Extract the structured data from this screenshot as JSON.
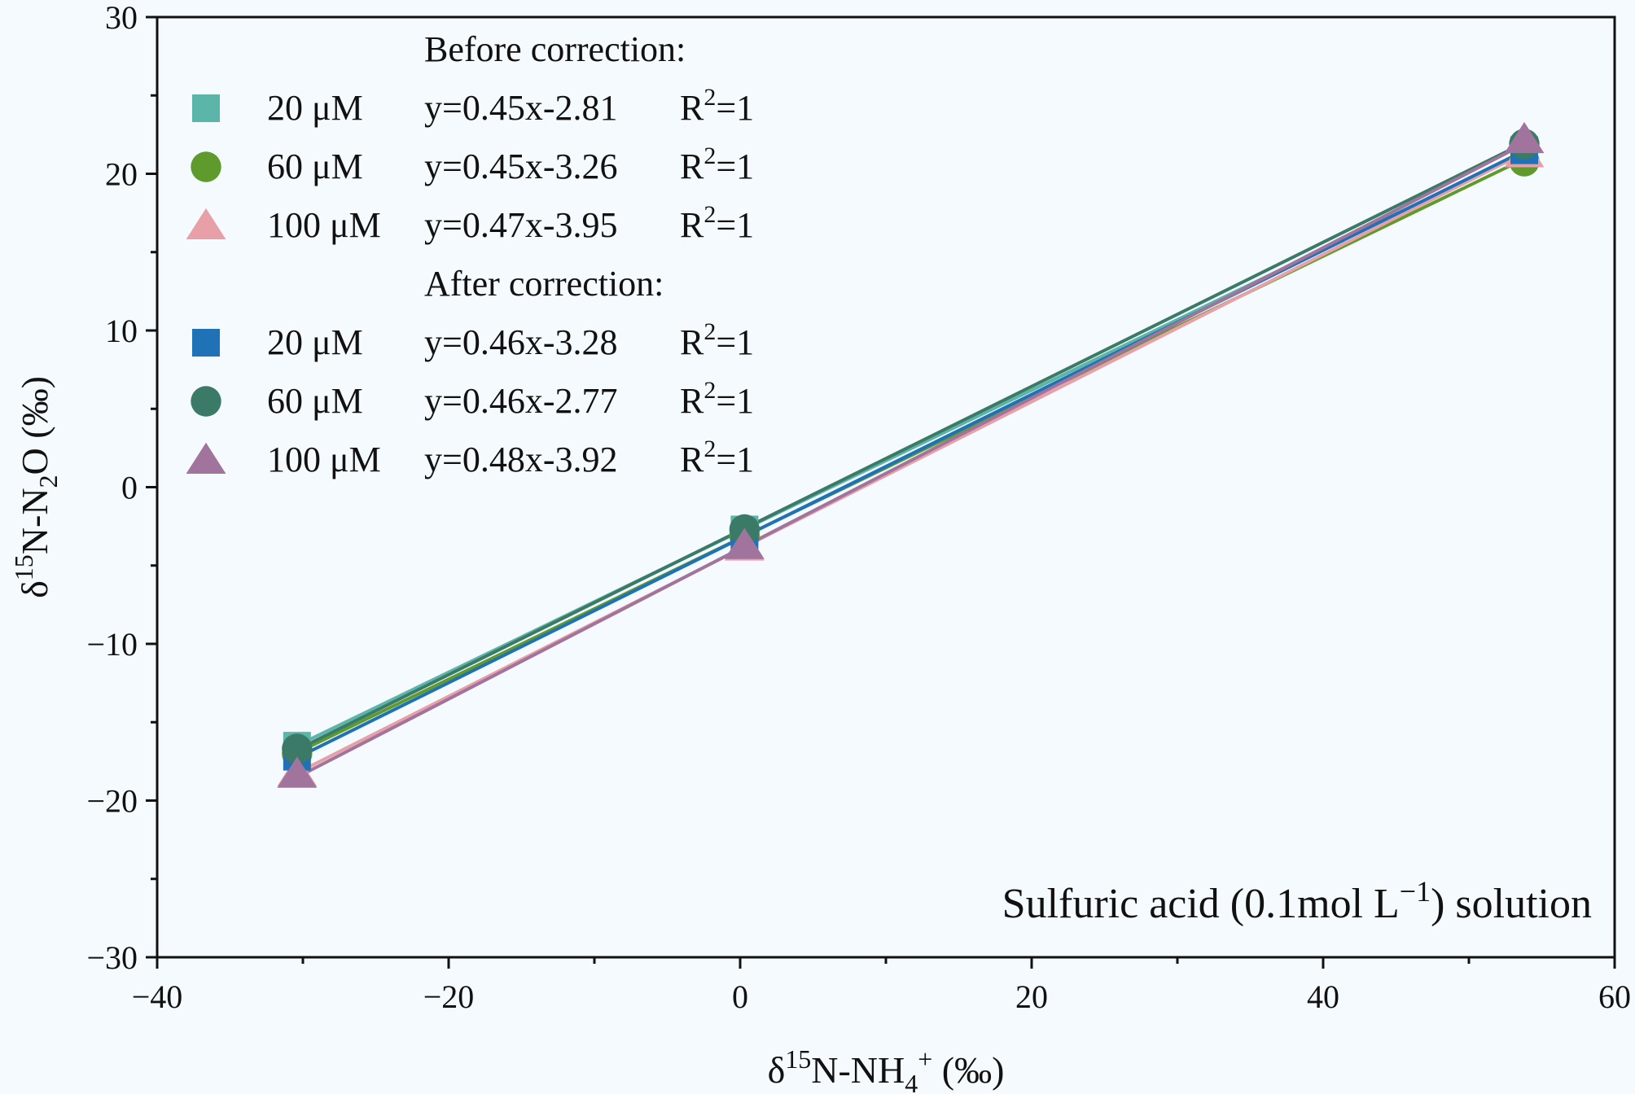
{
  "chart_data": {
    "type": "scatter",
    "xlabel": "δ15N-NH4+ (‰)",
    "ylabel": "δ15N-N2O (‰)",
    "xlabel_parts": {
      "pre": "δ",
      "sup1": "15",
      "mid": "N-NH",
      "sub": "4",
      "sup2": "+",
      "post": " (‰)"
    },
    "ylabel_parts": {
      "pre": "δ",
      "sup1": "15",
      "mid": "N-N",
      "sub": "2",
      "post": "O (‰)"
    },
    "xlim": [
      -40,
      60
    ],
    "ylim": [
      -30,
      30
    ],
    "x_ticks": [
      -40,
      -20,
      0,
      20,
      40,
      60
    ],
    "y_ticks": [
      -30,
      -20,
      -10,
      0,
      10,
      20,
      30
    ],
    "x_tick_labels": [
      "−40",
      "−20",
      "0",
      "20",
      "40",
      "60"
    ],
    "y_tick_labels": [
      "−30",
      "−20",
      "−10",
      "0",
      "10",
      "20",
      "30"
    ],
    "grid": false,
    "legend_position": "top-left",
    "annotation": {
      "pre": "Sulfuric acid (0.1mol L",
      "sup": "−1",
      "post": ") solution"
    },
    "groups": [
      {
        "title": "Before correction:",
        "series_indices": [
          0,
          1,
          2
        ]
      },
      {
        "title": "After correction:",
        "series_indices": [
          3,
          4,
          5
        ]
      }
    ],
    "series": [
      {
        "name": "20 μM",
        "marker": "square",
        "color": "#5bb5a9",
        "slope": 0.45,
        "intercept": -2.81,
        "equation": "y=0.45x-2.81",
        "r2_label": "R",
        "r2_sup": "2",
        "r2_value": "=1",
        "x": [
          -30.4,
          0.3,
          53.8
        ],
        "y": [
          -16.5,
          -2.7,
          21.4
        ]
      },
      {
        "name": "60 μM",
        "marker": "circle",
        "color": "#5e9a2c",
        "slope": 0.45,
        "intercept": -3.26,
        "equation": "y=0.45x-3.26",
        "r2_label": "R",
        "r2_sup": "2",
        "r2_value": "=1",
        "x": [
          -30.4,
          0.3,
          53.8
        ],
        "y": [
          -17.0,
          -3.1,
          20.8
        ]
      },
      {
        "name": "100 μM",
        "marker": "triangle",
        "color": "#e8a0a8",
        "slope": 0.47,
        "intercept": -3.95,
        "equation": "y=0.47x-3.95",
        "r2_label": "R",
        "r2_sup": "2",
        "r2_value": "=1",
        "x": [
          -30.4,
          0.3,
          53.8
        ],
        "y": [
          -18.2,
          -3.8,
          21.3
        ]
      },
      {
        "name": "20 μM",
        "marker": "square",
        "color": "#1f72b6",
        "slope": 0.46,
        "intercept": -3.28,
        "equation": "y=0.46x-3.28",
        "r2_label": "R",
        "r2_sup": "2",
        "r2_value": "=1",
        "x": [
          -30.4,
          0.3,
          53.8
        ],
        "y": [
          -17.2,
          -3.2,
          21.5
        ]
      },
      {
        "name": "60 μM",
        "marker": "circle",
        "color": "#3c7a68",
        "slope": 0.46,
        "intercept": -2.77,
        "equation": "y=0.46x-2.77",
        "r2_label": "R",
        "r2_sup": "2",
        "r2_value": "=1",
        "x": [
          -30.4,
          0.3,
          53.8
        ],
        "y": [
          -16.7,
          -2.7,
          21.9
        ]
      },
      {
        "name": "100 μM",
        "marker": "triangle",
        "color": "#a0749c",
        "slope": 0.48,
        "intercept": -3.92,
        "equation": "y=0.48x-3.92",
        "r2_label": "R",
        "r2_sup": "2",
        "r2_value": "=1",
        "x": [
          -30.4,
          0.3,
          53.8
        ],
        "y": [
          -18.3,
          -3.7,
          22.2
        ]
      }
    ]
  }
}
